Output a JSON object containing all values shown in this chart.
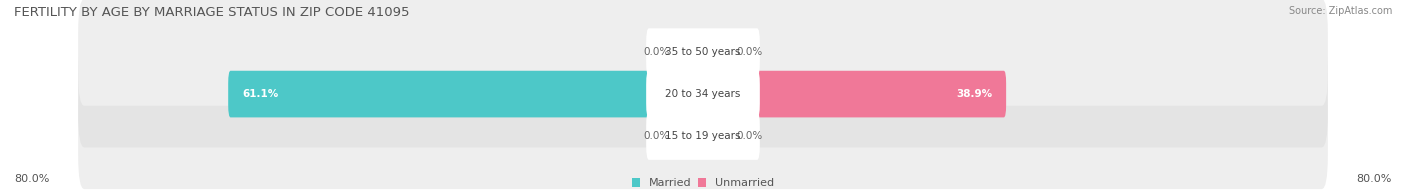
{
  "title": "FERTILITY BY AGE BY MARRIAGE STATUS IN ZIP CODE 41095",
  "source": "Source: ZipAtlas.com",
  "categories": [
    "15 to 19 years",
    "20 to 34 years",
    "35 to 50 years"
  ],
  "married_values": [
    0.0,
    61.1,
    0.0
  ],
  "unmarried_values": [
    0.0,
    38.9,
    0.0
  ],
  "max_value": 80.0,
  "married_color": "#4dc8c8",
  "unmarried_color": "#f07898",
  "row_bg_color_odd": "#eeeeee",
  "row_bg_color_even": "#e4e4e4",
  "label_bg_color": "#ffffff",
  "stub_married_color": "#7dd8d8",
  "stub_unmarried_color": "#f4a0b8",
  "title_fontsize": 9.5,
  "source_fontsize": 7,
  "bar_label_fontsize": 7.5,
  "cat_label_fontsize": 7.5,
  "tick_fontsize": 8,
  "legend_fontsize": 8,
  "axis_left_label": "80.0%",
  "axis_right_label": "80.0%",
  "background_color": "#ffffff",
  "stub_size": 3.5
}
